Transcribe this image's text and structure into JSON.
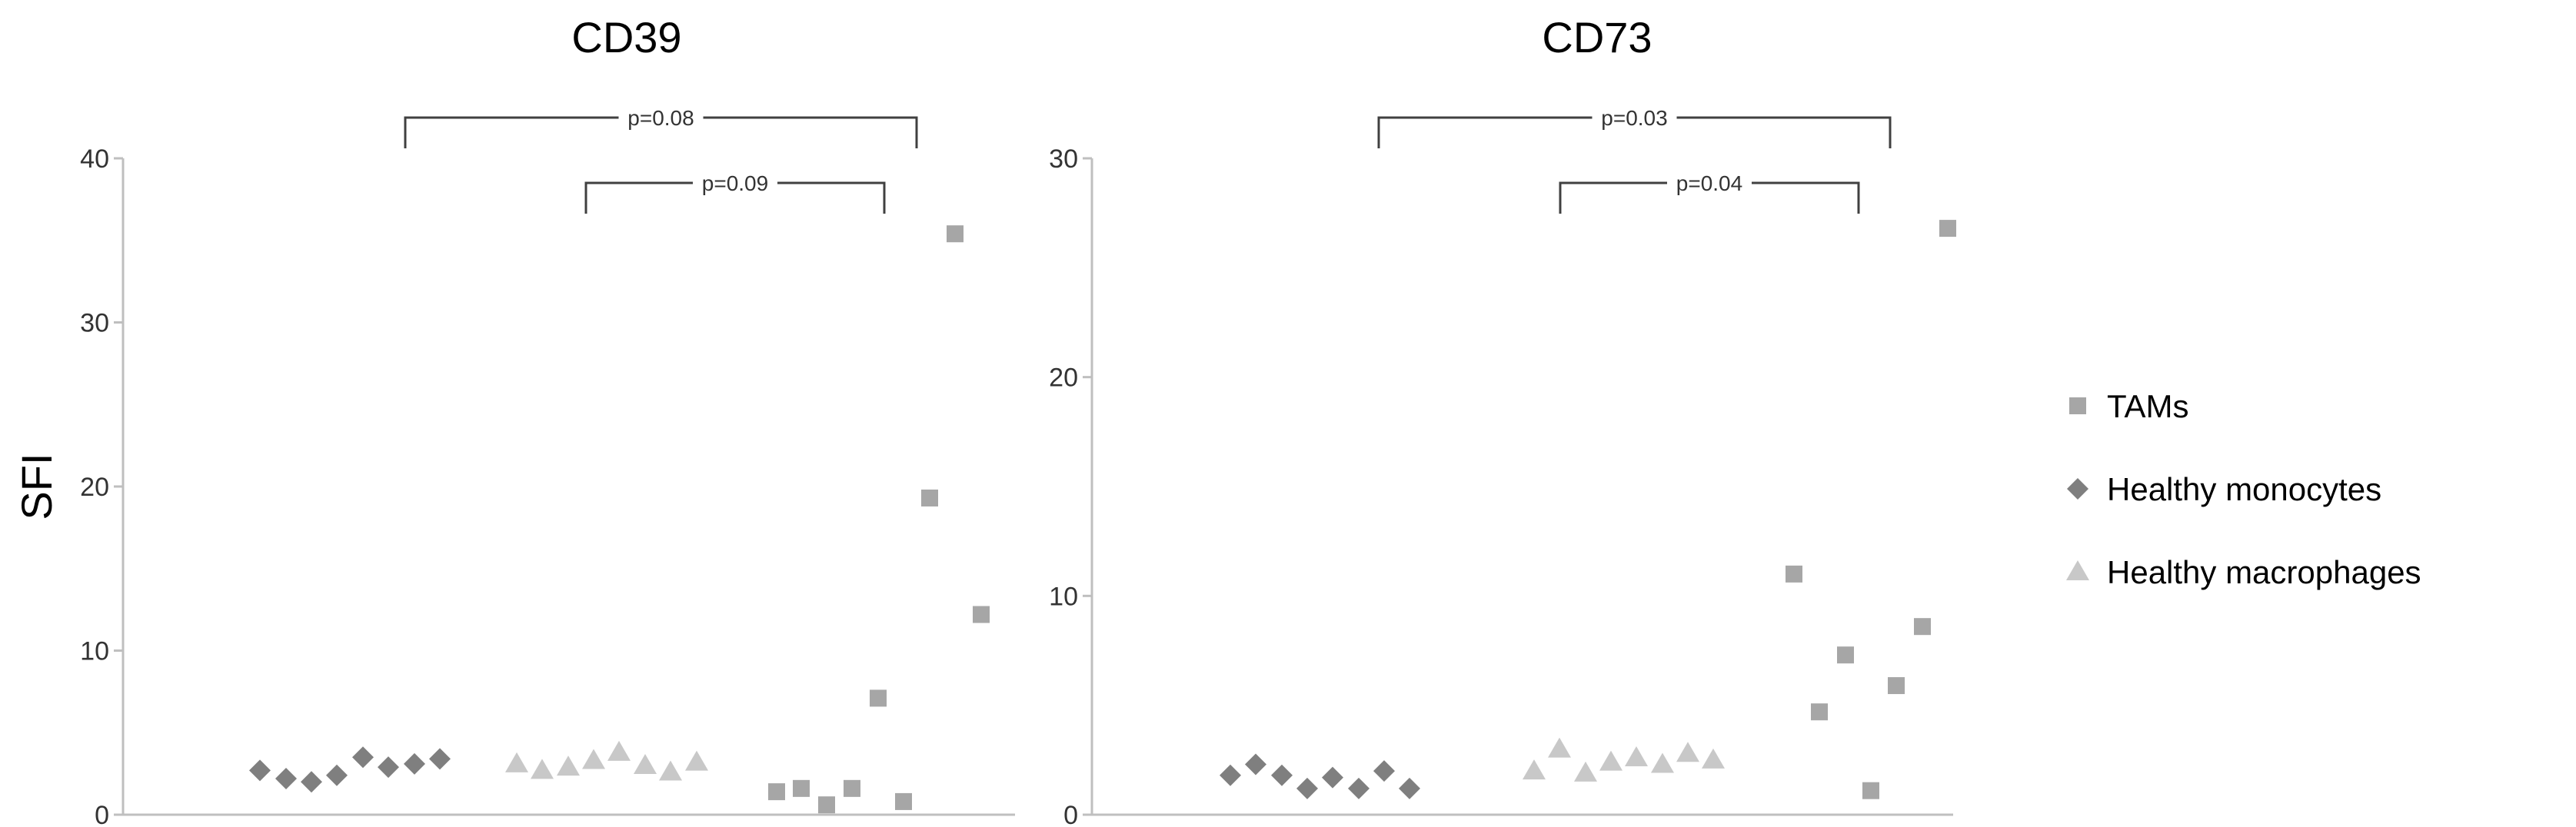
{
  "chart_data": [
    {
      "type": "scatter",
      "title": "CD39",
      "ylabel": "SFI",
      "ylim": [
        0,
        40
      ],
      "yticks": [
        0,
        10,
        20,
        30,
        40
      ],
      "series": [
        {
          "name": "Healthy monocytes",
          "marker": "diamond",
          "color": "#7f7f7f",
          "values": [
            2.7,
            2.2,
            2.0,
            2.4,
            3.5,
            2.9,
            3.1,
            3.4
          ]
        },
        {
          "name": "Healthy macrophages",
          "marker": "triangle",
          "color": "#c8c8c8",
          "values": [
            3.1,
            2.7,
            2.9,
            3.3,
            3.8,
            3.0,
            2.6,
            3.2
          ]
        },
        {
          "name": "TAMs",
          "marker": "square",
          "color": "#a6a6a6",
          "values": [
            1.4,
            1.6,
            0.6,
            1.6,
            7.1,
            0.8,
            19.3,
            35.4,
            12.2
          ]
        }
      ],
      "comparisons": [
        {
          "from": "Healthy monocytes",
          "to": "TAMs",
          "label": "p=0.08"
        },
        {
          "from": "Healthy macrophages",
          "to": "TAMs",
          "label": "p=0.09"
        }
      ]
    },
    {
      "type": "scatter",
      "title": "CD73",
      "ylabel": "",
      "ylim": [
        0,
        30
      ],
      "yticks": [
        0,
        10,
        20,
        30
      ],
      "series": [
        {
          "name": "Healthy monocytes",
          "marker": "diamond",
          "color": "#7f7f7f",
          "values": [
            1.8,
            2.3,
            1.8,
            1.2,
            1.7,
            1.2,
            2.0,
            1.2
          ]
        },
        {
          "name": "Healthy macrophages",
          "marker": "triangle",
          "color": "#c8c8c8",
          "values": [
            2.0,
            3.0,
            1.9,
            2.4,
            2.6,
            2.3,
            2.8,
            2.5
          ]
        },
        {
          "name": "TAMs",
          "marker": "square",
          "color": "#a6a6a6",
          "values": [
            11.0,
            4.7,
            7.3,
            1.1,
            5.9,
            8.6,
            26.8
          ]
        }
      ],
      "comparisons": [
        {
          "from": "Healthy monocytes",
          "to": "TAMs",
          "label": "p=0.03"
        },
        {
          "from": "Healthy macrophages",
          "to": "TAMs",
          "label": "p=0.04"
        }
      ]
    }
  ],
  "legend": {
    "position": "right",
    "items": [
      {
        "label": "TAMs",
        "marker": "square",
        "color": "#a6a6a6"
      },
      {
        "label": "Healthy monocytes",
        "marker": "diamond",
        "color": "#7f7f7f"
      },
      {
        "label": "Healthy macrophages",
        "marker": "triangle",
        "color": "#c8c8c8"
      }
    ]
  }
}
